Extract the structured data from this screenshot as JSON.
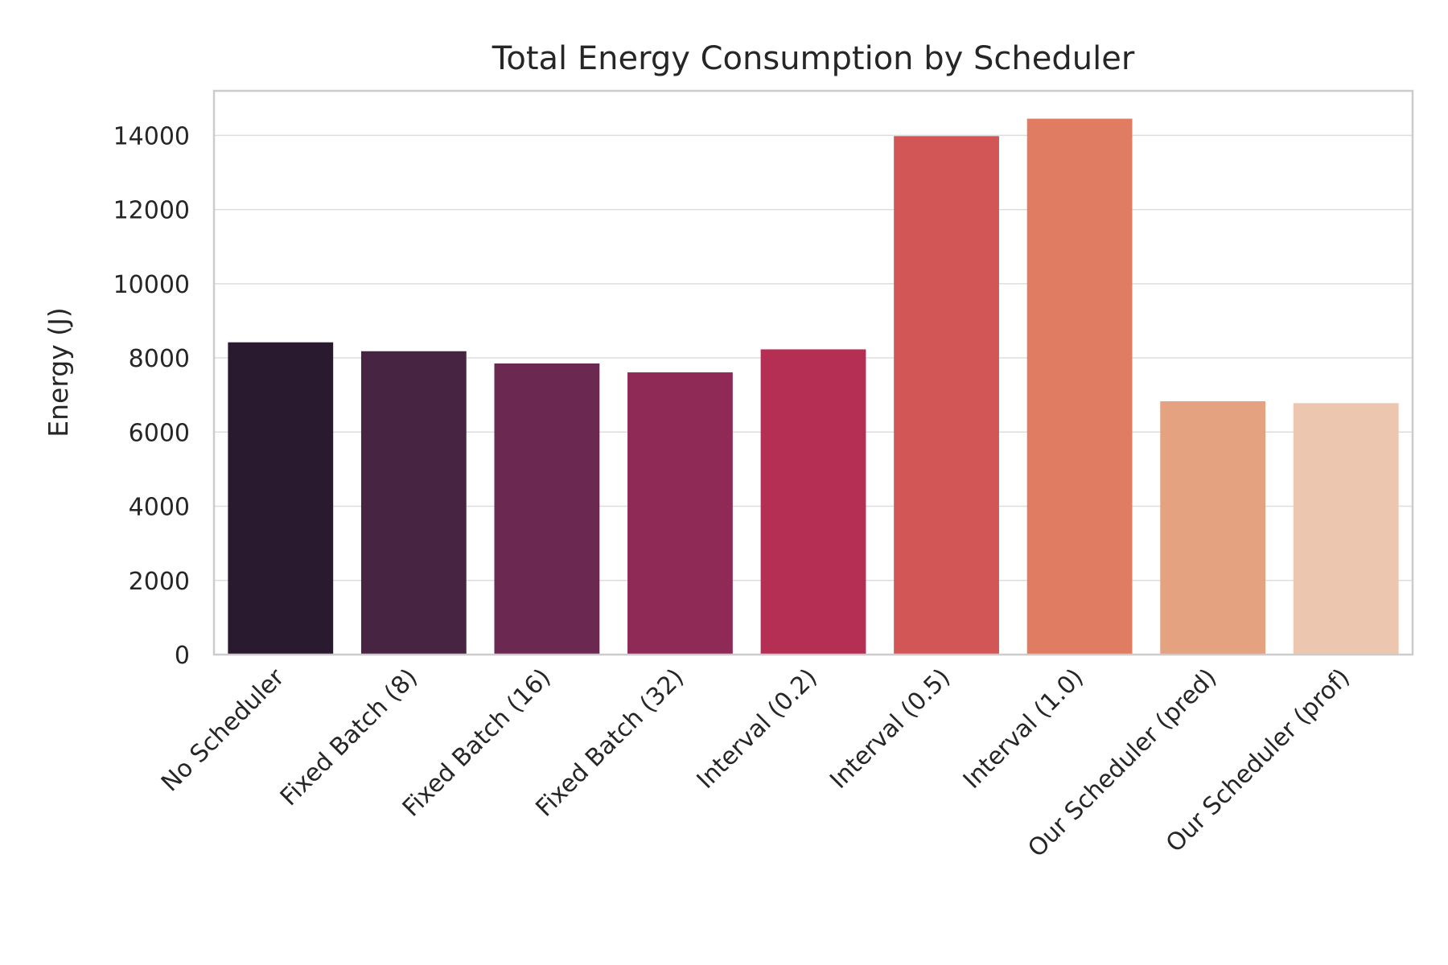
{
  "chart_data": {
    "type": "bar",
    "title": "Total Energy Consumption by Scheduler",
    "xlabel": "",
    "ylabel": "Energy (J)",
    "ylim": [
      0,
      15200
    ],
    "yticks": [
      0,
      2000,
      4000,
      6000,
      8000,
      10000,
      12000,
      14000
    ],
    "grid": true,
    "categories": [
      "No Scheduler",
      "Fixed Batch (8)",
      "Fixed Batch (16)",
      "Fixed Batch (32)",
      "Interval (0.2)",
      "Interval (0.5)",
      "Interval (1.0)",
      "Our Scheduler (pred)",
      "Our Scheduler (prof)"
    ],
    "values": [
      8420,
      8180,
      7850,
      7610,
      8230,
      13980,
      14450,
      6830,
      6780
    ],
    "colors": [
      "#2a1a30",
      "#482443",
      "#6b2952",
      "#8f2a57",
      "#b52e54",
      "#d35657",
      "#e07c62",
      "#e4a281",
      "#ecc6ae"
    ]
  }
}
